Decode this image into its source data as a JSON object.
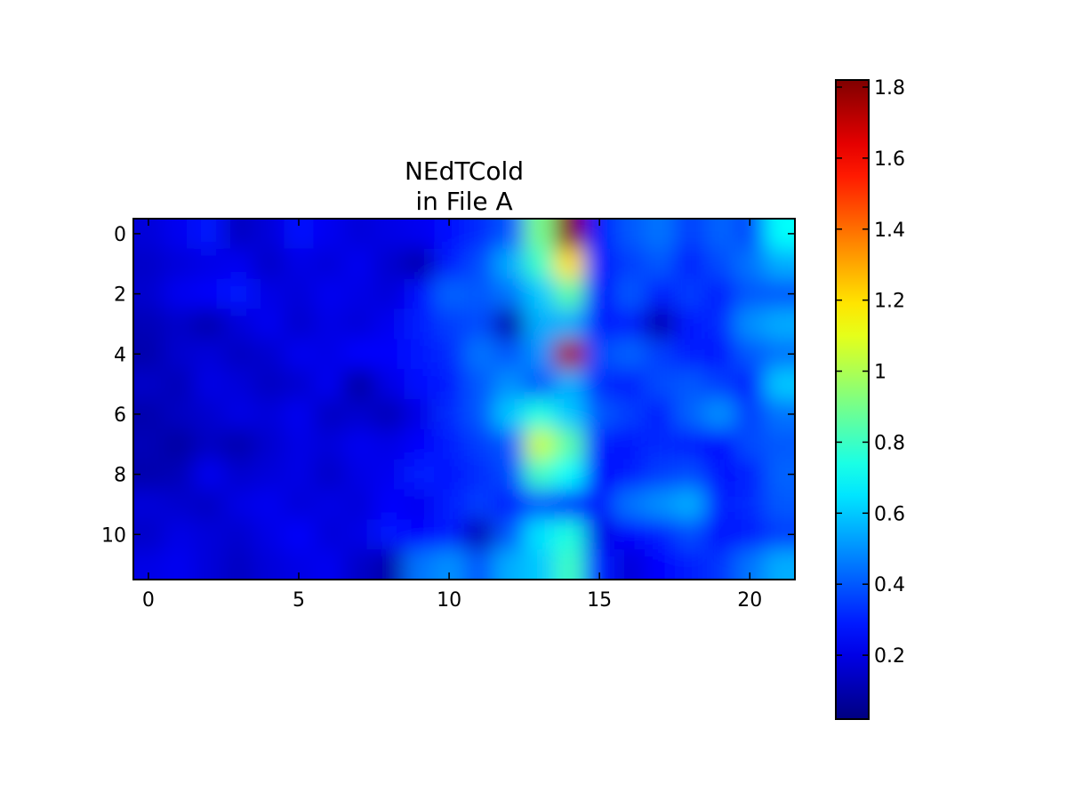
{
  "chart_data": {
    "type": "heatmap",
    "title_lines": [
      "NEdTCold",
      "in File A"
    ],
    "xlabel": "",
    "ylabel": "",
    "x_range": [
      -0.5,
      21.5
    ],
    "y_range": [
      -0.5,
      11.5
    ],
    "y_inverted": true,
    "x_ticks": [
      "0",
      "5",
      "10",
      "15",
      "20"
    ],
    "y_ticks": [
      "0",
      "2",
      "4",
      "6",
      "8",
      "10"
    ],
    "colormap": "jet",
    "interpolation": "bilinear",
    "colorbar": {
      "range": [
        0.02,
        1.82
      ],
      "ticks": [
        "0.2",
        "0.4",
        "0.6",
        "0.8",
        "1",
        "1.2",
        "1.4",
        "1.6",
        "1.8"
      ]
    },
    "grid": false,
    "values": [
      [
        0.18,
        0.22,
        0.28,
        0.14,
        0.18,
        0.26,
        0.22,
        0.18,
        0.2,
        0.22,
        0.26,
        0.32,
        0.4,
        0.9,
        1.8,
        0.3,
        0.4,
        0.45,
        0.35,
        0.42,
        0.38,
        0.7
      ],
      [
        0.15,
        0.18,
        0.2,
        0.22,
        0.15,
        0.2,
        0.18,
        0.22,
        0.16,
        0.1,
        0.3,
        0.38,
        0.55,
        0.8,
        1.2,
        0.28,
        0.35,
        0.4,
        0.3,
        0.38,
        0.45,
        0.55
      ],
      [
        0.16,
        0.22,
        0.24,
        0.28,
        0.2,
        0.18,
        0.22,
        0.2,
        0.18,
        0.26,
        0.42,
        0.4,
        0.45,
        0.6,
        0.85,
        0.25,
        0.4,
        0.3,
        0.35,
        0.3,
        0.4,
        0.4
      ],
      [
        0.12,
        0.15,
        0.1,
        0.18,
        0.22,
        0.16,
        0.2,
        0.18,
        0.22,
        0.3,
        0.35,
        0.38,
        0.1,
        0.55,
        0.55,
        0.3,
        0.3,
        0.1,
        0.28,
        0.32,
        0.5,
        0.55
      ],
      [
        0.1,
        0.16,
        0.18,
        0.14,
        0.16,
        0.22,
        0.2,
        0.25,
        0.24,
        0.28,
        0.32,
        0.45,
        0.4,
        0.5,
        1.75,
        0.38,
        0.42,
        0.35,
        0.3,
        0.28,
        0.4,
        0.45
      ],
      [
        0.15,
        0.12,
        0.2,
        0.18,
        0.14,
        0.16,
        0.22,
        0.08,
        0.2,
        0.26,
        0.3,
        0.4,
        0.5,
        0.4,
        0.55,
        0.32,
        0.3,
        0.38,
        0.4,
        0.35,
        0.3,
        0.6
      ],
      [
        0.1,
        0.14,
        0.16,
        0.2,
        0.18,
        0.22,
        0.14,
        0.16,
        0.12,
        0.2,
        0.32,
        0.4,
        0.6,
        0.75,
        0.6,
        0.4,
        0.35,
        0.3,
        0.42,
        0.5,
        0.35,
        0.45
      ],
      [
        0.12,
        0.08,
        0.14,
        0.1,
        0.16,
        0.2,
        0.18,
        0.22,
        0.2,
        0.24,
        0.3,
        0.35,
        0.4,
        1.05,
        0.85,
        0.3,
        0.28,
        0.32,
        0.3,
        0.25,
        0.38,
        0.4
      ],
      [
        0.1,
        0.12,
        0.22,
        0.16,
        0.18,
        0.2,
        0.15,
        0.2,
        0.22,
        0.3,
        0.28,
        0.32,
        0.38,
        0.8,
        0.7,
        0.25,
        0.3,
        0.35,
        0.38,
        0.28,
        0.3,
        0.42
      ],
      [
        0.18,
        0.16,
        0.14,
        0.2,
        0.22,
        0.18,
        0.2,
        0.18,
        0.24,
        0.22,
        0.3,
        0.35,
        0.3,
        0.4,
        0.3,
        0.28,
        0.45,
        0.5,
        0.55,
        0.3,
        0.32,
        0.4
      ],
      [
        0.15,
        0.2,
        0.18,
        0.16,
        0.2,
        0.24,
        0.18,
        0.2,
        0.28,
        0.25,
        0.3,
        0.12,
        0.4,
        0.65,
        0.75,
        0.2,
        0.25,
        0.3,
        0.38,
        0.26,
        0.3,
        0.35
      ],
      [
        0.2,
        0.22,
        0.18,
        0.14,
        0.18,
        0.2,
        0.22,
        0.15,
        0.1,
        0.45,
        0.5,
        0.4,
        0.55,
        0.6,
        0.8,
        0.3,
        0.18,
        0.25,
        0.3,
        0.34,
        0.45,
        0.55
      ]
    ]
  }
}
